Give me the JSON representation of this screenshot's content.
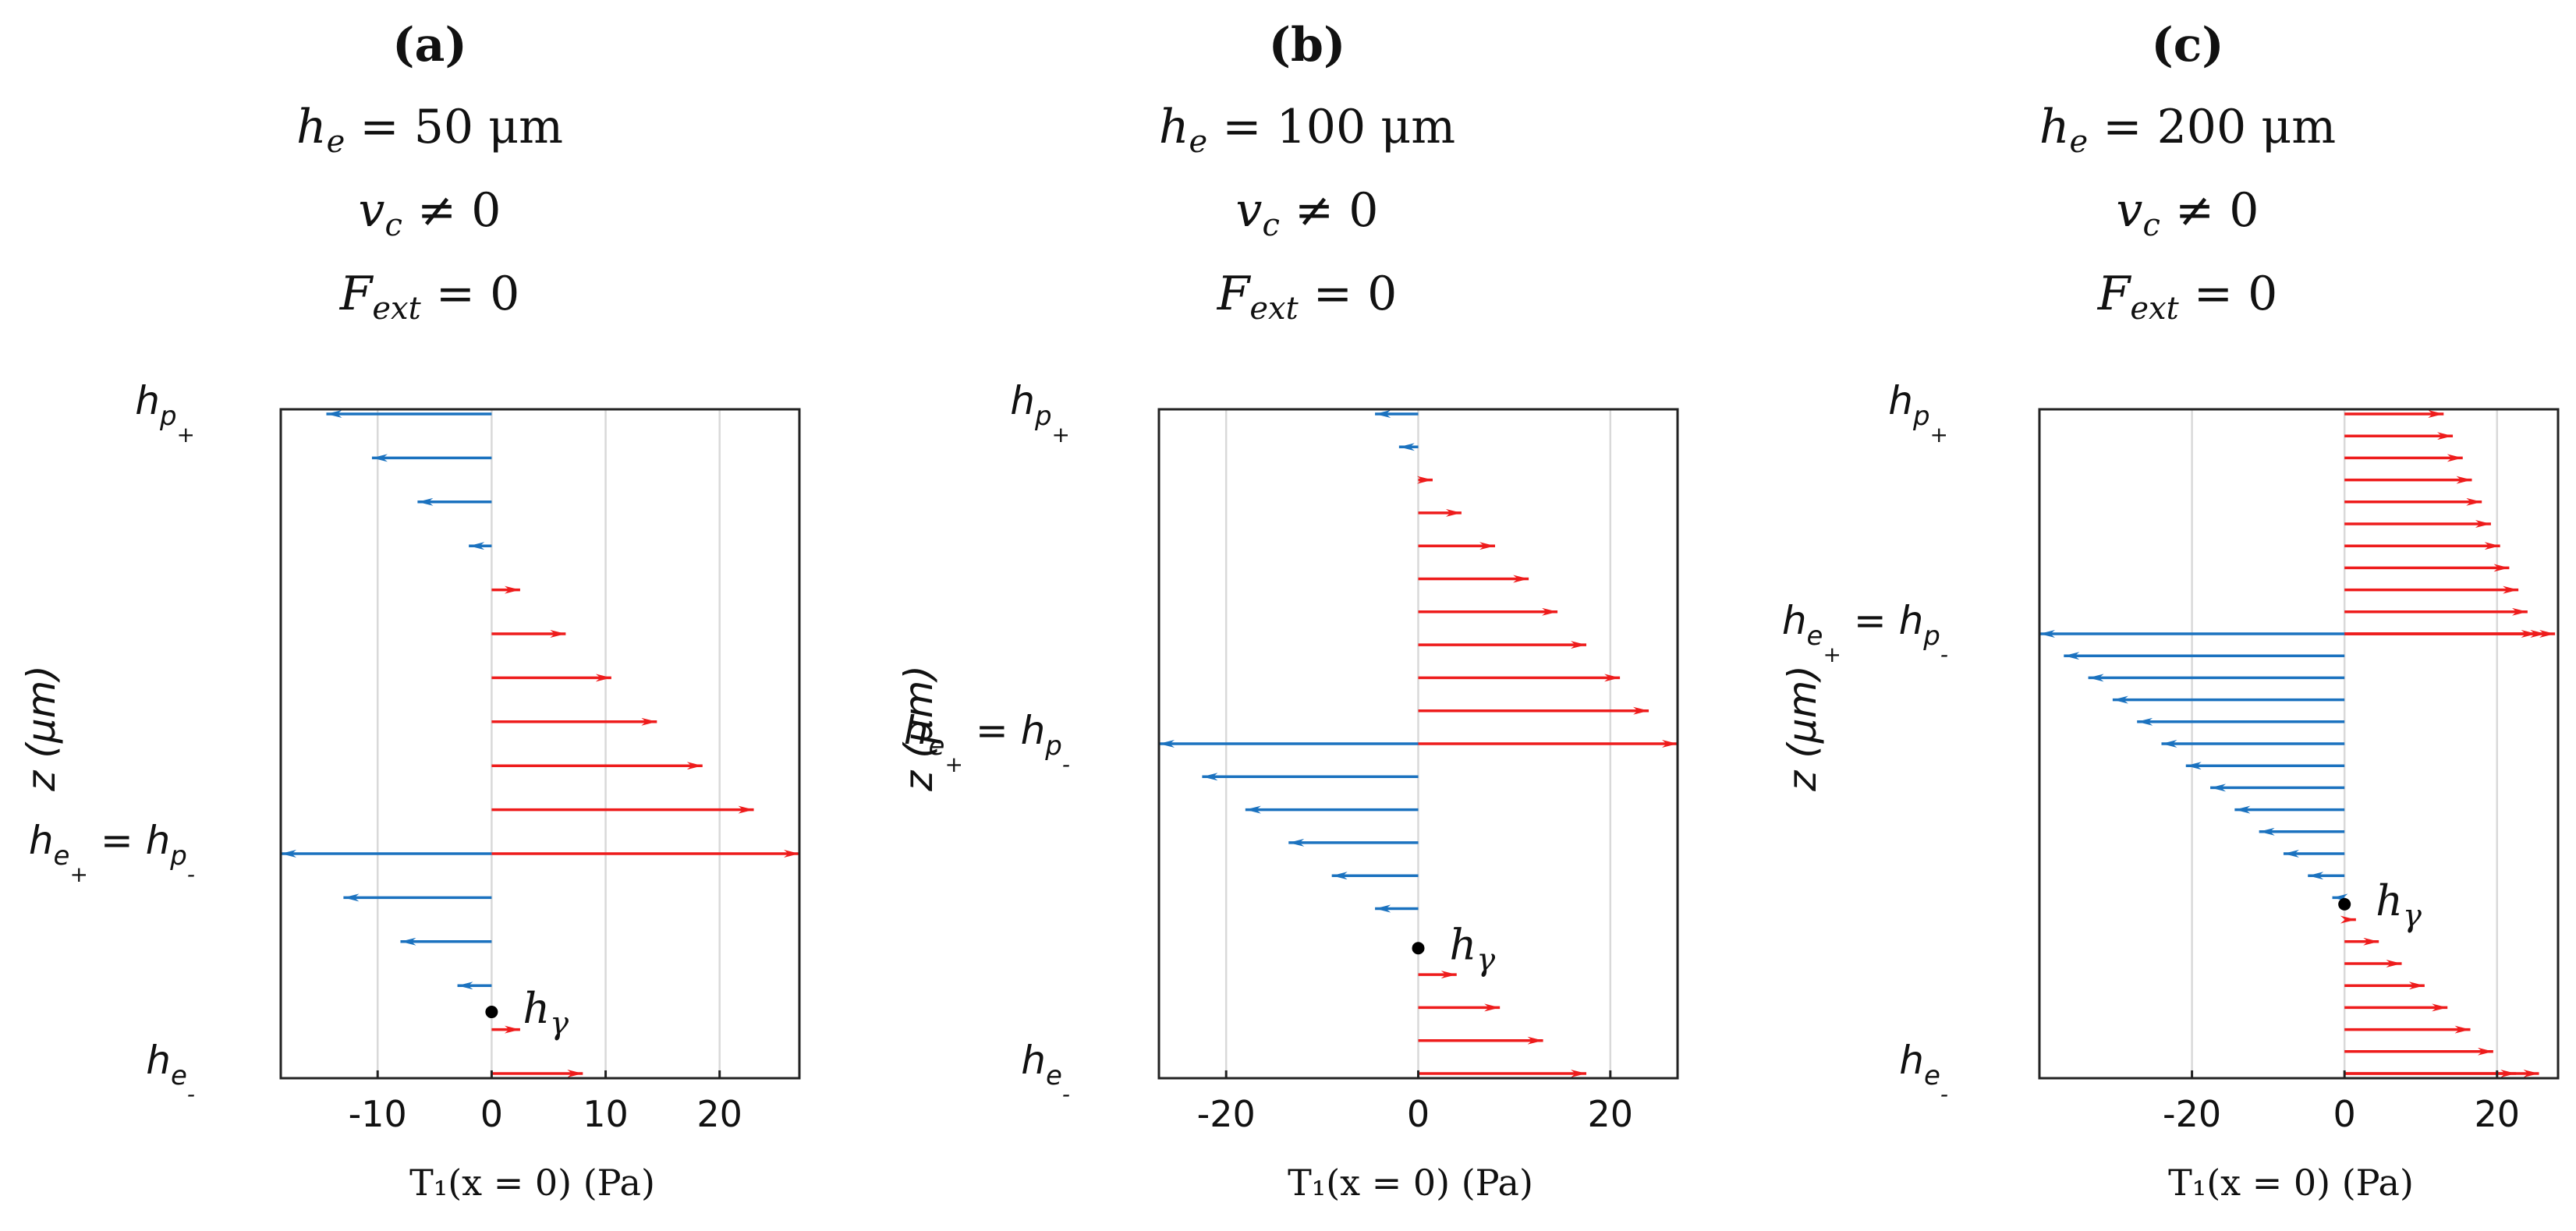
{
  "colors": {
    "positive": "#ee1c1c",
    "negative": "#1b72bf",
    "grid": "#d9d9d9",
    "axis": "#222222"
  },
  "chart_data": [
    {
      "type": "quiver",
      "panel_label": "(a)",
      "title_lines": [
        "h_e = 50 μm",
        "v_c ≠ 0",
        "F_ext = 0"
      ],
      "title_parts": {
        "he_value": " = 50 μm",
        "vc_value": " ≠ 0",
        "fext_value": " = 0"
      },
      "xlabel": "T₁(x = 0)  (Pa)",
      "ylabel": "z  (μm)",
      "xlim": [
        -18.5,
        27
      ],
      "xticks": [
        -10,
        0,
        10,
        20
      ],
      "xtick_labels": [
        "-10",
        "0",
        "10",
        "20"
      ],
      "levels_top_to_bottom": [
        0,
        1,
        2,
        3,
        4,
        5,
        6,
        7,
        8,
        9,
        10,
        11,
        12,
        13,
        14,
        15
      ],
      "n_levels": 16,
      "arrow_values": [
        -14.5,
        -10.5,
        -6.5,
        -2,
        2.5,
        6.5,
        10.5,
        14.5,
        18.5,
        23,
        27,
        -18.5,
        -13,
        -8,
        -3,
        2.5,
        8
      ],
      "arrow_levels": [
        0,
        1,
        2,
        3,
        4,
        5,
        6,
        7,
        8,
        9,
        10,
        10,
        11,
        12,
        13,
        14,
        15
      ],
      "level_labels": [
        {
          "main": "h",
          "sub": "p",
          "subsub": "+",
          "level": 0
        },
        {
          "main": "h",
          "sub": "e",
          "subsub": "+",
          "tail": " = h",
          "sub2": "p",
          "subsub2": "-",
          "level": 10
        },
        {
          "main": "h",
          "sub": "e",
          "subsub": "-",
          "level": 15
        }
      ],
      "h_gamma": {
        "value": 0,
        "level": 13.6,
        "label": "h",
        "sub": "γ"
      }
    },
    {
      "type": "quiver",
      "panel_label": "(b)",
      "title_lines": [
        "h_e = 100 μm",
        "v_c ≠ 0",
        "F_ext = 0"
      ],
      "title_parts": {
        "he_value": " = 100 μm",
        "vc_value": " ≠ 0",
        "fext_value": " = 0"
      },
      "xlabel": "T₁(x = 0)  (Pa)",
      "ylabel": "z  (μm)",
      "xlim": [
        -27,
        27
      ],
      "xticks": [
        -20,
        0,
        20
      ],
      "xtick_labels": [
        "-20",
        "0",
        "20"
      ],
      "n_levels": 21,
      "arrow_values": [
        -4.5,
        -2,
        1.5,
        4.5,
        8,
        11.5,
        14.5,
        17.5,
        21,
        24,
        27,
        -27,
        -22.5,
        -18,
        -13.5,
        -9,
        -4.5,
        4,
        8.5,
        13,
        17.5
      ],
      "arrow_levels": [
        0,
        1,
        2,
        3,
        4,
        5,
        6,
        7,
        8,
        9,
        10,
        10,
        11,
        12,
        13,
        14,
        15,
        17,
        18,
        19,
        20
      ],
      "level_labels": [
        {
          "main": "h",
          "sub": "p",
          "subsub": "+",
          "level": 0
        },
        {
          "main": "h",
          "sub": "e",
          "subsub": "+",
          "tail": " = h",
          "sub2": "p",
          "subsub2": "-",
          "level": 10
        },
        {
          "main": "h",
          "sub": "e",
          "subsub": "-",
          "level": 20
        }
      ],
      "h_gamma": {
        "value": 0,
        "level": 16.2,
        "label": "h",
        "sub": "γ"
      }
    },
    {
      "type": "quiver",
      "panel_label": "(c)",
      "title_lines": [
        "h_e = 200 μm",
        "v_c ≠ 0",
        "F_ext = 0"
      ],
      "title_parts": {
        "he_value": " = 200 μm",
        "vc_value": " ≠ 0",
        "fext_value": " = 0"
      },
      "xlabel": "T₁(x = 0)  (Pa)",
      "ylabel": "z  (μm)",
      "xlim": [
        -40,
        28
      ],
      "xticks": [
        -20,
        0,
        20
      ],
      "xtick_labels": [
        "-20",
        "0",
        "20"
      ],
      "n_levels": 31,
      "arrow_values": [
        13,
        14.2,
        15.5,
        16.7,
        18,
        19.2,
        20.4,
        21.6,
        22.8,
        24,
        25.2,
        26.4,
        27.6,
        -40,
        -36.8,
        -33.6,
        -30.4,
        -27.2,
        -24,
        -20.8,
        -17.6,
        -14.4,
        -11.2,
        -8,
        -4.8,
        -1.6,
        1.5,
        4.5,
        7.5,
        10.5,
        13.5,
        16.5,
        19.5,
        22.5,
        25.5
      ],
      "arrow_levels": [
        0,
        1,
        2,
        3,
        4,
        5,
        6,
        7,
        8,
        9,
        10,
        10,
        10,
        10,
        11,
        12,
        13,
        14,
        15,
        16,
        17,
        18,
        19,
        20,
        21,
        22,
        23,
        24,
        25,
        26,
        27,
        28,
        29,
        30,
        30
      ],
      "level_labels": [
        {
          "main": "h",
          "sub": "p",
          "subsub": "+",
          "level": 0
        },
        {
          "main": "h",
          "sub": "e",
          "subsub": "+",
          "tail": " = h",
          "sub2": "p",
          "subsub2": "-",
          "level": 10
        },
        {
          "main": "h",
          "sub": "e",
          "subsub": "-",
          "level": 30
        }
      ],
      "h_gamma": {
        "value": 0,
        "level": 22.3,
        "label": "h",
        "sub": "γ"
      }
    }
  ]
}
